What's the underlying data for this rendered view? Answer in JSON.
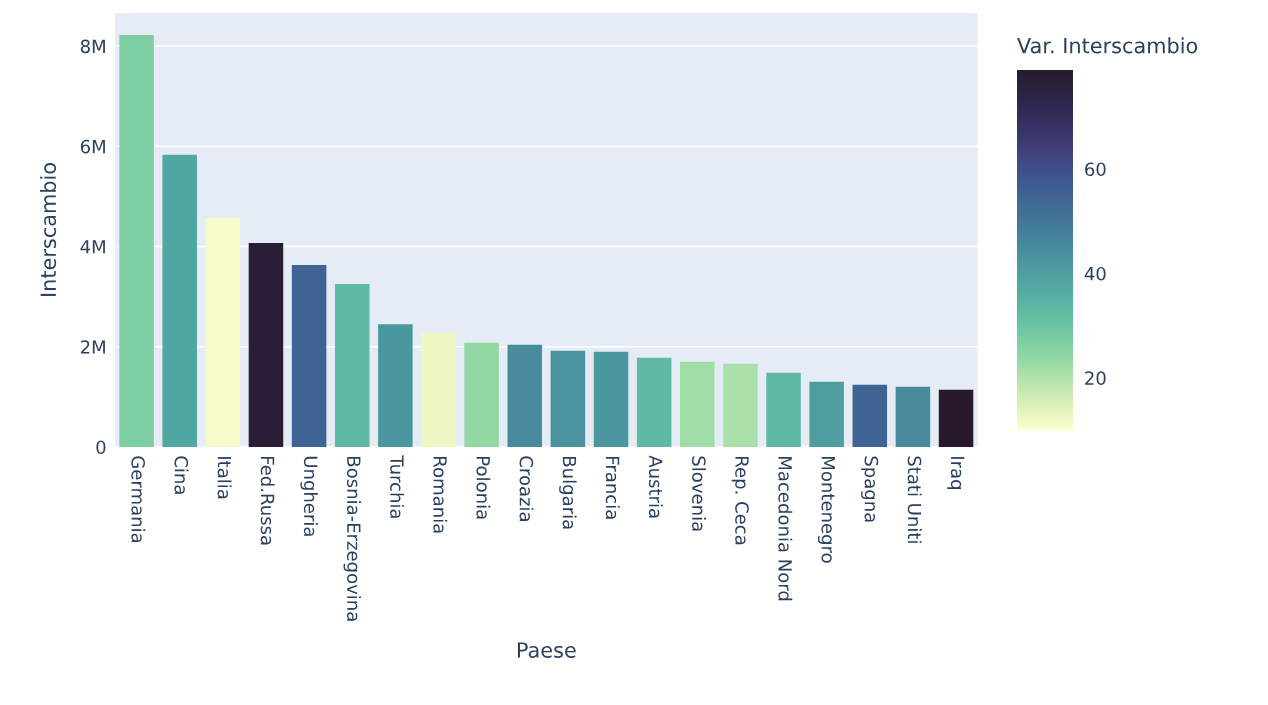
{
  "chart_data": {
    "type": "bar",
    "xlabel": "Paese",
    "ylabel": "Interscambio",
    "clabel": "Var. Interscambio",
    "categories": [
      "Germania",
      "Cina",
      "Italia",
      "Fed.Russa",
      "Ungheria",
      "Bosnia-Erzegovina",
      "Turchia",
      "Romania",
      "Polonia",
      "Croazia",
      "Bulgaria",
      "Francia",
      "Austria",
      "Slovenia",
      "Rep. Ceca",
      "Macedonia Nord",
      "Montenegro",
      "Spagna",
      "Stati Uniti",
      "Iraq"
    ],
    "values": [
      8220000,
      5830000,
      4570000,
      4070000,
      3630000,
      3250000,
      2450000,
      2280000,
      2080000,
      2040000,
      1920000,
      1900000,
      1780000,
      1700000,
      1660000,
      1480000,
      1300000,
      1240000,
      1200000,
      1140000
    ],
    "cvalues": [
      27,
      38,
      11,
      77,
      55,
      33,
      42,
      12,
      24,
      45,
      43,
      42,
      33,
      22,
      21,
      33,
      40,
      55,
      45,
      79
    ],
    "clim": [
      10,
      79
    ],
    "cticks": [
      20,
      40,
      60
    ],
    "ylim": [
      0,
      8660000
    ],
    "yticks": [
      {
        "value": 0,
        "label": "0"
      },
      {
        "value": 2000000,
        "label": "2M"
      },
      {
        "value": 4000000,
        "label": "4M"
      },
      {
        "value": 6000000,
        "label": "6M"
      },
      {
        "value": 8000000,
        "label": "8M"
      }
    ],
    "grid": "y"
  }
}
